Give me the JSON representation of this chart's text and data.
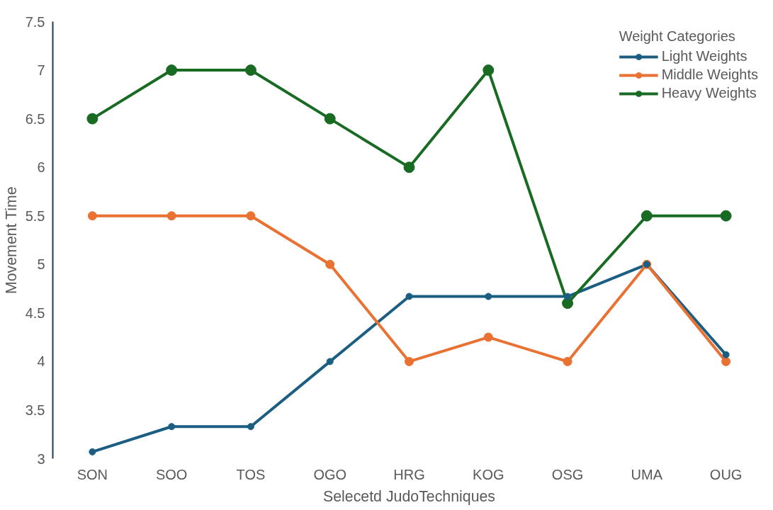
{
  "chart_data": {
    "type": "line",
    "xlabel": "Selecetd JudoTechniques",
    "ylabel": "Movement Time",
    "legend_title": "Weight Categories",
    "categories": [
      "SON",
      "SOO",
      "TOS",
      "OGO",
      "HRG",
      "KOG",
      "OSG",
      "UMA",
      "OUG"
    ],
    "series": [
      {
        "name": "Light Weights",
        "color": "#1b5e82",
        "values": [
          3.07,
          3.33,
          3.33,
          4.0,
          4.67,
          4.67,
          4.67,
          5.0,
          4.07
        ]
      },
      {
        "name": "Middle Weights",
        "color": "#e97132",
        "values": [
          5.5,
          5.5,
          5.5,
          5.0,
          4.0,
          4.25,
          4.0,
          5.0,
          4.0
        ]
      },
      {
        "name": "Heavy Weights",
        "color": "#196b24",
        "values": [
          6.5,
          7,
          7,
          6.5,
          6,
          7,
          4.6,
          5.5,
          5.5
        ]
      }
    ],
    "ylim": [
      3,
      7.5
    ],
    "yticks": [
      3,
      3.5,
      4,
      4.5,
      5,
      5.5,
      6,
      6.5,
      7,
      7.5
    ],
    "grid": false,
    "legend": "top right",
    "marker": "circle",
    "line_style": "solid"
  }
}
